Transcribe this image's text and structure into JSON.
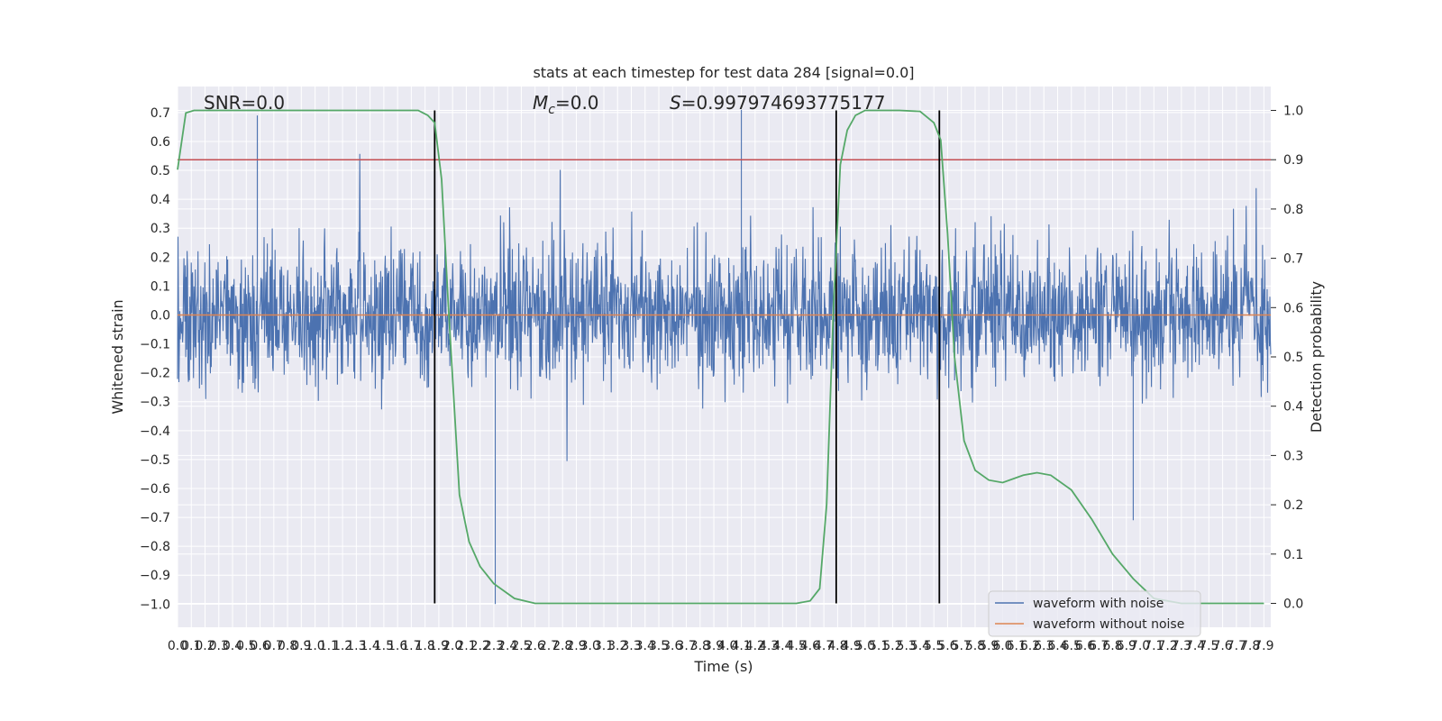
{
  "chart_data": {
    "type": "line",
    "title": "stats at each timestep for test data 284 [signal=0.0]",
    "xlabel": "Time (s)",
    "ylabel": "Whitened strain",
    "y2label": "Detection probability",
    "annotations": {
      "snr": "SNR=0.0",
      "mc_symbol": "M",
      "mc_sub": "c",
      "mc_value": "=0.0",
      "s_symbol": "S",
      "s_value": "=0.997974693775177"
    },
    "xlim": [
      0.0,
      7.95
    ],
    "ylim": [
      -1.08,
      0.79
    ],
    "y2lim": [
      -0.0485,
      1.0485
    ],
    "xticks": [
      "0.0",
      "0.1",
      "0.2",
      "0.3",
      "0.4",
      "0.5",
      "0.6",
      "0.7",
      "0.8",
      "0.9",
      "1.0",
      "1.1",
      "1.2",
      "1.3",
      "1.4",
      "1.5",
      "1.6",
      "1.7",
      "1.8",
      "1.9",
      "2.0",
      "2.1",
      "2.2",
      "2.3",
      "2.4",
      "2.5",
      "2.6",
      "2.7",
      "2.8",
      "2.9",
      "3.0",
      "3.1",
      "3.2",
      "3.3",
      "3.4",
      "3.5",
      "3.6",
      "3.7",
      "3.8",
      "3.9",
      "4.0",
      "4.1",
      "4.2",
      "4.3",
      "4.4",
      "4.5",
      "4.6",
      "4.7",
      "4.8",
      "4.9",
      "5.0",
      "5.1",
      "5.2",
      "5.3",
      "5.4",
      "5.5",
      "5.6",
      "5.7",
      "5.8",
      "5.9",
      "6.0",
      "6.1",
      "6.2",
      "6.3",
      "6.4",
      "6.5",
      "6.6",
      "6.7",
      "6.8",
      "6.9",
      "7.0",
      "7.1",
      "7.2",
      "7.3",
      "7.4",
      "7.5",
      "7.6",
      "7.7",
      "7.8",
      "7.9"
    ],
    "yticks": [
      "0.7",
      "0.6",
      "0.5",
      "0.4",
      "0.3",
      "0.2",
      "0.1",
      "0.0",
      "−0.1",
      "−0.2",
      "−0.3",
      "−0.4",
      "−0.5",
      "−0.6",
      "−0.7",
      "−0.8",
      "−0.9",
      "−1.0"
    ],
    "y2ticks": [
      "1.0",
      "0.9",
      "0.8",
      "0.7",
      "0.6",
      "0.5",
      "0.4",
      "0.3",
      "0.2",
      "0.1",
      "0.0"
    ],
    "series": [
      {
        "name": "waveform with noise",
        "color": "#4c72b0",
        "approx_envelope": {
          "typical_low": -0.45,
          "typical_high": 0.45,
          "min": -1.0,
          "max": 0.71
        },
        "notable_points": [
          [
            0.58,
            0.69
          ],
          [
            2.31,
            -1.0
          ],
          [
            4.1,
            0.71
          ],
          [
            6.95,
            -0.71
          ]
        ]
      },
      {
        "name": "waveform without noise",
        "color": "#dd8452",
        "x": [
          0.0,
          7.95
        ],
        "y": [
          0.0,
          0.0
        ]
      },
      {
        "name": "",
        "color": "#55a868",
        "axis": "right",
        "x": [
          0.0,
          0.06,
          0.12,
          1.5,
          1.75,
          1.82,
          1.87,
          1.92,
          1.97,
          2.05,
          2.12,
          2.2,
          2.3,
          2.45,
          2.6,
          3.0,
          4.0,
          4.5,
          4.6,
          4.67,
          4.72,
          4.77,
          4.82,
          4.87,
          4.93,
          5.0,
          5.1,
          5.25,
          5.4,
          5.5,
          5.55,
          5.6,
          5.65,
          5.72,
          5.8,
          5.9,
          6.0,
          6.15,
          6.25,
          6.35,
          6.5,
          6.65,
          6.8,
          6.95,
          7.1,
          7.3,
          7.55,
          7.9
        ],
        "y": [
          0.88,
          0.995,
          1.0,
          1.0,
          1.0,
          0.99,
          0.975,
          0.86,
          0.6,
          0.22,
          0.125,
          0.075,
          0.04,
          0.01,
          0.0,
          0.0,
          0.0,
          0.0,
          0.005,
          0.03,
          0.2,
          0.6,
          0.89,
          0.96,
          0.99,
          1.0,
          1.0,
          1.0,
          0.998,
          0.975,
          0.94,
          0.75,
          0.5,
          0.33,
          0.27,
          0.25,
          0.245,
          0.26,
          0.265,
          0.26,
          0.23,
          0.17,
          0.1,
          0.05,
          0.01,
          0.0,
          0.0,
          0.0
        ]
      }
    ],
    "hlines": [
      {
        "y2": 0.9,
        "color": "#c44e52"
      }
    ],
    "vlines": [
      {
        "x": 1.87,
        "color": "#000000"
      },
      {
        "x": 4.79,
        "color": "#000000"
      },
      {
        "x": 5.54,
        "color": "#000000"
      }
    ],
    "legend": {
      "placement": "lower-right",
      "entries": [
        {
          "label": "waveform with noise",
          "color": "#4c72b0"
        },
        {
          "label": "waveform without noise",
          "color": "#dd8452"
        }
      ]
    },
    "grid": true,
    "background": "#eaeaf2"
  }
}
